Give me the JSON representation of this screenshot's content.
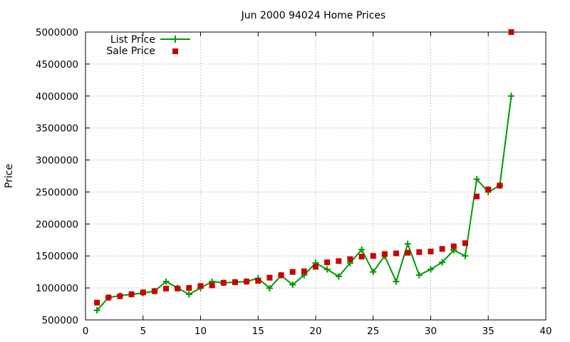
{
  "chart_data": {
    "type": "line",
    "title": "Jun 2000 94024 Home Prices",
    "xlabel": "",
    "ylabel": "Price",
    "xlim": [
      0,
      40
    ],
    "ylim": [
      500000,
      5000000
    ],
    "x_ticks": [
      0,
      5,
      10,
      15,
      20,
      25,
      30,
      35,
      40
    ],
    "y_ticks": [
      500000,
      1000000,
      1500000,
      2000000,
      2500000,
      3000000,
      3500000,
      4000000,
      4500000,
      5000000
    ],
    "grid": true,
    "legend_position": "top-left",
    "series": [
      {
        "name": "List Price",
        "style": "line+plus",
        "color": "#009900",
        "x": [
          1,
          2,
          3,
          4,
          5,
          6,
          7,
          8,
          9,
          10,
          11,
          12,
          13,
          14,
          15,
          16,
          17,
          18,
          19,
          20,
          21,
          22,
          23,
          24,
          25,
          26,
          27,
          28,
          29,
          30,
          31,
          32,
          33,
          34,
          35,
          36,
          37
        ],
        "y": [
          650000,
          850000,
          880000,
          900000,
          920000,
          950000,
          1100000,
          1000000,
          900000,
          1000000,
          1100000,
          1080000,
          1090000,
          1100000,
          1150000,
          995000,
          1195000,
          1050000,
          1200000,
          1390000,
          1290000,
          1180000,
          1390000,
          1600000,
          1250000,
          1500000,
          1100000,
          1690000,
          1200000,
          1290000,
          1400000,
          1590000,
          1500000,
          2700000,
          2500000,
          2600000,
          4000000
        ]
      },
      {
        "name": "Sale Price",
        "style": "square",
        "color": "#cc0000",
        "x": [
          1,
          2,
          3,
          4,
          5,
          6,
          7,
          8,
          9,
          10,
          11,
          12,
          13,
          14,
          15,
          16,
          17,
          18,
          19,
          20,
          21,
          22,
          23,
          24,
          25,
          26,
          27,
          28,
          29,
          30,
          31,
          32,
          33,
          34,
          35,
          36,
          37
        ],
        "y": [
          770000,
          850000,
          870000,
          900000,
          930000,
          950000,
          990000,
          990000,
          1000000,
          1030000,
          1040000,
          1080000,
          1090000,
          1100000,
          1110000,
          1160000,
          1200000,
          1250000,
          1260000,
          1330000,
          1400000,
          1420000,
          1450000,
          1490000,
          1500000,
          1530000,
          1540000,
          1550000,
          1560000,
          1570000,
          1610000,
          1650000,
          1700000,
          2430000,
          2540000,
          2600000,
          5000000
        ]
      }
    ]
  }
}
